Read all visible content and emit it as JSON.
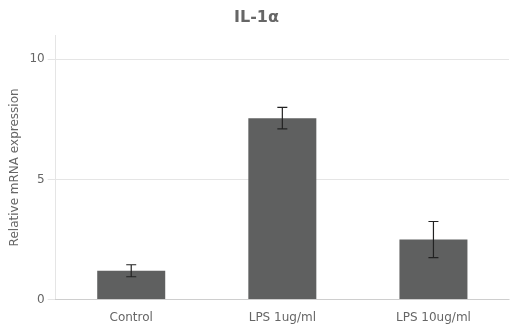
{
  "chart_data": {
    "type": "bar",
    "title": "IL-1α",
    "ylabel": "Relative mRNA expression",
    "categories": [
      "Control",
      "LPS 1ug/ml",
      "LPS 10ug/ml"
    ],
    "values": [
      1.2,
      7.55,
      2.5
    ],
    "errors": [
      0.25,
      0.45,
      0.75
    ],
    "color": "#5f6060",
    "ylim": [
      0,
      11
    ],
    "yticks": [
      0,
      5,
      10
    ],
    "grid": true
  }
}
